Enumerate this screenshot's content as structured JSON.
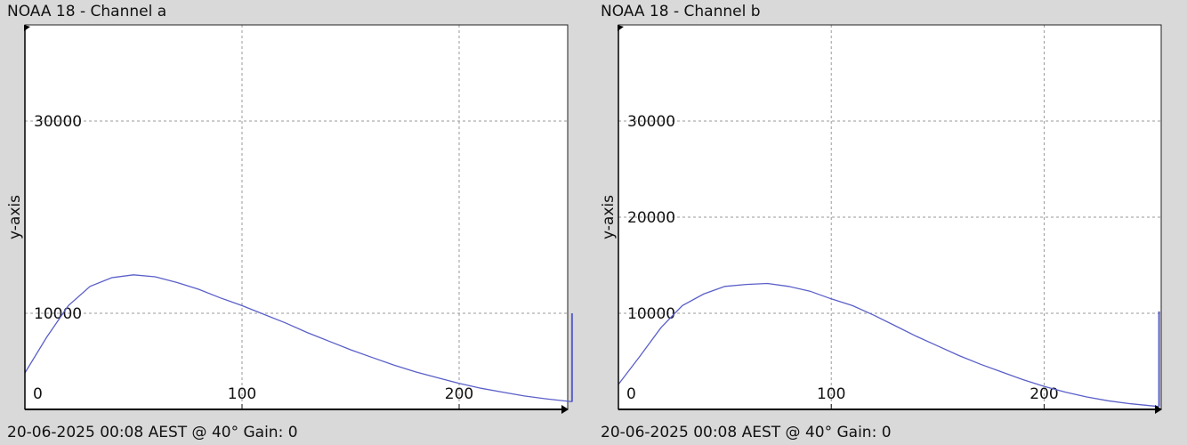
{
  "chart_data": [
    {
      "type": "line",
      "title": "NOAA 18 - Channel a",
      "footer": "20-06-2025 00:08 AEST @ 40° Gain: 0",
      "ylabel": "y-axis",
      "xlabel": "",
      "xlim": [
        0,
        250
      ],
      "ylim": [
        0,
        40000
      ],
      "x_ticks": [
        0,
        100,
        200
      ],
      "y_ticks": [
        10000,
        30000
      ],
      "grid": true,
      "line_color": "#5a5fc8",
      "series": [
        {
          "x": [
            0,
            10,
            20,
            30,
            40,
            50,
            60,
            70,
            80,
            90,
            100,
            110,
            120,
            130,
            140,
            150,
            160,
            170,
            180,
            190,
            200,
            210,
            220,
            230,
            240,
            252
          ],
          "values": [
            3800,
            7500,
            10800,
            12800,
            13700,
            14000,
            13800,
            13200,
            12500,
            11600,
            10800,
            9900,
            9000,
            8000,
            7100,
            6200,
            5400,
            4600,
            3900,
            3300,
            2700,
            2200,
            1800,
            1400,
            1100,
            800
          ]
        }
      ],
      "end_spike": {
        "x": 252,
        "values": [
          800,
          10000
        ]
      }
    },
    {
      "type": "line",
      "title": "NOAA 18 - Channel b",
      "footer": "20-06-2025 00:08 AEST @ 40° Gain: 0",
      "ylabel": "y-axis",
      "xlabel": "",
      "xlim": [
        0,
        255
      ],
      "ylim": [
        0,
        40000
      ],
      "x_ticks": [
        0,
        100,
        200
      ],
      "y_ticks": [
        10000,
        20000,
        30000
      ],
      "grid": true,
      "line_color": "#5a5fc8",
      "series": [
        {
          "x": [
            0,
            10,
            20,
            30,
            40,
            50,
            60,
            70,
            80,
            90,
            100,
            110,
            120,
            130,
            140,
            150,
            160,
            170,
            180,
            190,
            200,
            210,
            220,
            230,
            240,
            254
          ],
          "values": [
            2600,
            5500,
            8500,
            10800,
            12000,
            12800,
            13000,
            13100,
            12800,
            12300,
            11500,
            10800,
            9800,
            8700,
            7600,
            6600,
            5600,
            4700,
            3900,
            3100,
            2400,
            1800,
            1300,
            900,
            600,
            300
          ]
        }
      ],
      "end_spike": {
        "x": 254,
        "values": [
          300,
          10200
        ]
      }
    }
  ]
}
